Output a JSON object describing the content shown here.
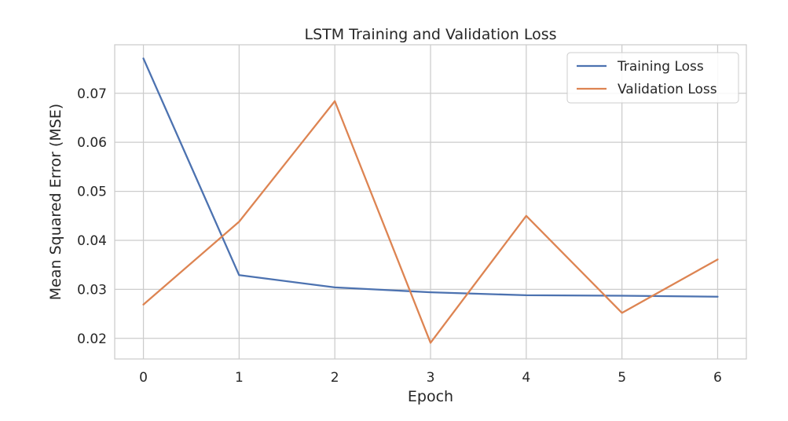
{
  "chart_data": {
    "type": "line",
    "title": "LSTM Training and Validation Loss",
    "xlabel": "Epoch",
    "ylabel": "Mean Squared Error (MSE)",
    "x": [
      0,
      1,
      2,
      3,
      4,
      5,
      6
    ],
    "x_ticks": [
      "0",
      "1",
      "2",
      "3",
      "4",
      "5",
      "6"
    ],
    "y_ticks": [
      "0.02",
      "0.03",
      "0.04",
      "0.05",
      "0.06",
      "0.07"
    ],
    "y_tick_values": [
      0.02,
      0.03,
      0.04,
      0.05,
      0.06,
      0.07
    ],
    "xlim": [
      -0.3,
      6.3
    ],
    "ylim": [
      0.0158,
      0.0799
    ],
    "grid": true,
    "legend_position": "top-right",
    "series": [
      {
        "name": "Training Loss",
        "color": "#4c72b0",
        "values": [
          0.0771,
          0.0329,
          0.0304,
          0.0294,
          0.0288,
          0.0287,
          0.0285
        ]
      },
      {
        "name": "Validation Loss",
        "color": "#dd8452",
        "values": [
          0.0269,
          0.0438,
          0.0684,
          0.0191,
          0.045,
          0.0252,
          0.0361
        ]
      }
    ]
  }
}
